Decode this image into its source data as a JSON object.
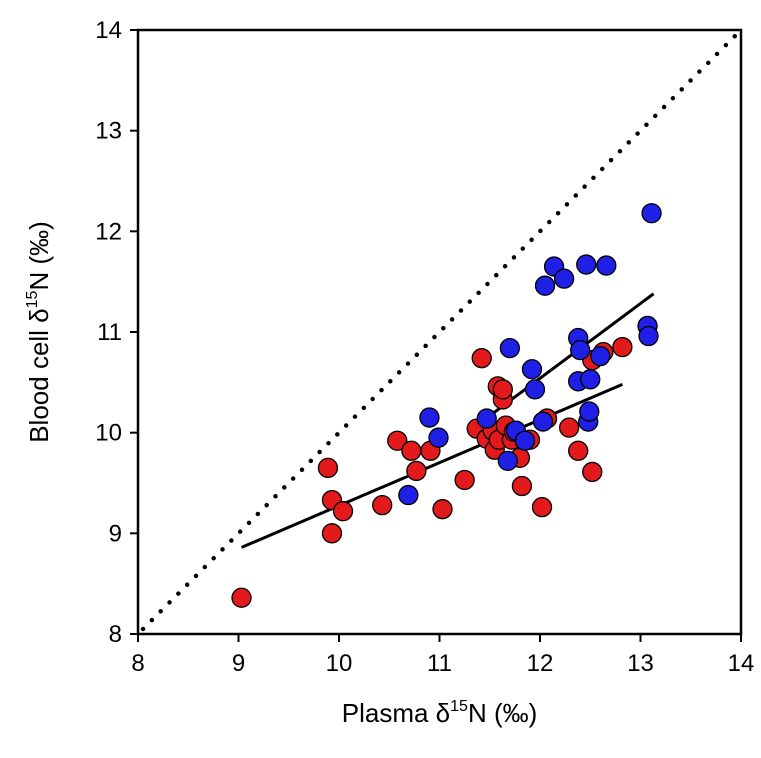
{
  "chart_data": {
    "type": "scatter",
    "xlabel": {
      "prefix": "Plasma ",
      "delta": "δ",
      "sup": "15",
      "suffix": "N (‰)"
    },
    "ylabel": {
      "prefix": "Blood cell ",
      "delta": "δ",
      "sup": "15",
      "suffix": "N (‰)"
    },
    "xlim": [
      8,
      14
    ],
    "ylim": [
      8,
      14
    ],
    "xticks": [
      "8",
      "9",
      "10",
      "11",
      "12",
      "13",
      "14"
    ],
    "yticks": [
      "8",
      "9",
      "10",
      "11",
      "12",
      "13",
      "14"
    ],
    "grid": false,
    "colors": {
      "red": "#e31a1c",
      "blue": "#1f1fe6",
      "edge": "#000000",
      "line": "#000000"
    },
    "series": [
      {
        "color": "red",
        "points": [
          [
            9.03,
            8.36
          ],
          [
            9.89,
            9.65
          ],
          [
            9.93,
            9.33
          ],
          [
            9.93,
            9.0
          ],
          [
            10.04,
            9.22
          ],
          [
            10.43,
            9.28
          ],
          [
            10.58,
            9.92
          ],
          [
            10.72,
            9.82
          ],
          [
            10.77,
            9.62
          ],
          [
            10.91,
            9.82
          ],
          [
            11.03,
            9.24
          ],
          [
            11.25,
            9.53
          ],
          [
            11.37,
            10.04
          ],
          [
            11.42,
            10.74
          ],
          [
            11.47,
            9.94
          ],
          [
            11.53,
            10.02
          ],
          [
            11.55,
            9.83
          ],
          [
            11.58,
            10.46
          ],
          [
            11.59,
            9.93
          ],
          [
            11.63,
            10.33
          ],
          [
            11.63,
            10.43
          ],
          [
            11.66,
            10.07
          ],
          [
            11.72,
            9.93
          ],
          [
            11.74,
            10.01
          ],
          [
            11.8,
            9.75
          ],
          [
            11.82,
            9.47
          ],
          [
            11.9,
            9.93
          ],
          [
            12.02,
            9.26
          ],
          [
            12.07,
            10.14
          ],
          [
            12.29,
            10.05
          ],
          [
            12.38,
            9.82
          ],
          [
            12.52,
            9.61
          ],
          [
            12.52,
            10.72
          ],
          [
            12.63,
            10.8
          ],
          [
            12.82,
            10.85
          ]
        ]
      },
      {
        "color": "blue",
        "points": [
          [
            10.69,
            9.38
          ],
          [
            10.9,
            10.15
          ],
          [
            10.99,
            9.95
          ],
          [
            11.47,
            10.14
          ],
          [
            11.68,
            9.72
          ],
          [
            11.7,
            10.84
          ],
          [
            11.76,
            10.02
          ],
          [
            11.85,
            9.92
          ],
          [
            11.92,
            10.63
          ],
          [
            11.95,
            10.43
          ],
          [
            12.03,
            10.11
          ],
          [
            12.05,
            11.46
          ],
          [
            12.14,
            11.65
          ],
          [
            12.24,
            11.53
          ],
          [
            12.38,
            10.51
          ],
          [
            12.38,
            10.94
          ],
          [
            12.4,
            10.82
          ],
          [
            12.46,
            11.67
          ],
          [
            12.48,
            10.11
          ],
          [
            12.49,
            10.21
          ],
          [
            12.5,
            10.53
          ],
          [
            12.6,
            10.76
          ],
          [
            12.66,
            11.66
          ],
          [
            13.07,
            11.06
          ],
          [
            13.08,
            10.96
          ],
          [
            13.11,
            12.18
          ]
        ]
      }
    ],
    "lines": [
      {
        "style": "solid",
        "points": [
          [
            9.03,
            8.86
          ],
          [
            12.82,
            10.48
          ]
        ]
      },
      {
        "style": "solid",
        "points": [
          [
            11.3,
            10.02
          ],
          [
            13.13,
            11.38
          ]
        ]
      },
      {
        "style": "dotted",
        "points": [
          [
            8.05,
            8.05
          ],
          [
            14.0,
            14.0
          ]
        ]
      }
    ]
  }
}
